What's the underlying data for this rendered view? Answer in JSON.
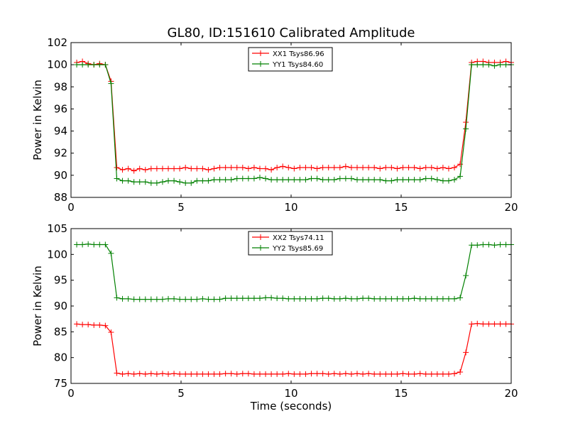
{
  "title": "GL80, ID:151610 Calibrated Amplitude",
  "colors": {
    "red": "#ff0000",
    "green": "#008000"
  },
  "chart_data": [
    {
      "type": "line",
      "title": "GL80, ID:151610 Calibrated Amplitude",
      "xlabel": "",
      "ylabel": "Power in Kelvin",
      "xlim": [
        0,
        20
      ],
      "ylim": [
        88,
        102
      ],
      "xticks": [
        "0",
        "5",
        "10",
        "15",
        "20"
      ],
      "yticks": [
        "88",
        "90",
        "92",
        "94",
        "96",
        "98",
        "100",
        "102"
      ],
      "legend_position": "top-center",
      "grid": false,
      "x": [
        0.26,
        0.52,
        0.78,
        1.04,
        1.3,
        1.56,
        1.82,
        2.08,
        2.34,
        2.6,
        2.86,
        3.12,
        3.38,
        3.64,
        3.9,
        4.16,
        4.42,
        4.68,
        4.94,
        5.2,
        5.46,
        5.72,
        5.98,
        6.24,
        6.5,
        6.76,
        7.02,
        7.28,
        7.54,
        7.8,
        8.06,
        8.32,
        8.58,
        8.84,
        9.1,
        9.36,
        9.62,
        9.88,
        10.14,
        10.4,
        10.66,
        10.92,
        11.18,
        11.44,
        11.7,
        11.96,
        12.22,
        12.48,
        12.74,
        13.0,
        13.26,
        13.52,
        13.78,
        14.04,
        14.3,
        14.56,
        14.82,
        15.08,
        15.34,
        15.6,
        15.86,
        16.12,
        16.38,
        16.64,
        16.9,
        17.16,
        17.42,
        17.68,
        17.94,
        18.2,
        18.46,
        18.72,
        18.98,
        19.24,
        19.5,
        19.76,
        20.0
      ],
      "series": [
        {
          "name": "XX1 Tsys86.96",
          "color": "#ff0000",
          "values": [
            100.2,
            100.3,
            100.1,
            100.0,
            100.1,
            100.0,
            98.5,
            90.7,
            90.5,
            90.6,
            90.4,
            90.6,
            90.5,
            90.6,
            90.6,
            90.6,
            90.6,
            90.6,
            90.6,
            90.7,
            90.6,
            90.6,
            90.6,
            90.5,
            90.6,
            90.7,
            90.7,
            90.7,
            90.7,
            90.7,
            90.6,
            90.7,
            90.6,
            90.6,
            90.5,
            90.7,
            90.8,
            90.7,
            90.6,
            90.7,
            90.7,
            90.7,
            90.6,
            90.7,
            90.7,
            90.7,
            90.7,
            90.8,
            90.7,
            90.7,
            90.7,
            90.7,
            90.7,
            90.6,
            90.7,
            90.7,
            90.6,
            90.7,
            90.7,
            90.7,
            90.6,
            90.7,
            90.7,
            90.6,
            90.7,
            90.6,
            90.7,
            91.0,
            94.8,
            100.2,
            100.3,
            100.3,
            100.2,
            100.2,
            100.2,
            100.3,
            100.2
          ]
        },
        {
          "name": "YY1 Tsys84.60",
          "color": "#008000",
          "values": [
            100.0,
            100.0,
            100.0,
            100.0,
            100.0,
            100.0,
            98.3,
            89.7,
            89.5,
            89.5,
            89.4,
            89.4,
            89.4,
            89.3,
            89.3,
            89.4,
            89.5,
            89.5,
            89.4,
            89.3,
            89.3,
            89.5,
            89.5,
            89.5,
            89.6,
            89.6,
            89.6,
            89.6,
            89.7,
            89.7,
            89.7,
            89.7,
            89.8,
            89.7,
            89.6,
            89.6,
            89.6,
            89.6,
            89.6,
            89.6,
            89.6,
            89.7,
            89.7,
            89.6,
            89.6,
            89.6,
            89.7,
            89.7,
            89.7,
            89.6,
            89.6,
            89.6,
            89.6,
            89.6,
            89.5,
            89.5,
            89.6,
            89.6,
            89.6,
            89.6,
            89.6,
            89.7,
            89.7,
            89.6,
            89.5,
            89.5,
            89.6,
            89.9,
            94.2,
            100.0,
            100.0,
            100.0,
            100.0,
            99.9,
            100.0,
            100.0,
            100.0
          ]
        }
      ]
    },
    {
      "type": "line",
      "title": "",
      "xlabel": "Time (seconds)",
      "ylabel": "Power in Kelvin",
      "xlim": [
        0,
        20
      ],
      "ylim": [
        75,
        105
      ],
      "xticks": [
        "0",
        "5",
        "10",
        "15",
        "20"
      ],
      "yticks": [
        "75",
        "80",
        "85",
        "90",
        "95",
        "100",
        "105"
      ],
      "legend_position": "top-center",
      "grid": false,
      "x": [
        0.26,
        0.52,
        0.78,
        1.04,
        1.3,
        1.56,
        1.82,
        2.08,
        2.34,
        2.6,
        2.86,
        3.12,
        3.38,
        3.64,
        3.9,
        4.16,
        4.42,
        4.68,
        4.94,
        5.2,
        5.46,
        5.72,
        5.98,
        6.24,
        6.5,
        6.76,
        7.02,
        7.28,
        7.54,
        7.8,
        8.06,
        8.32,
        8.58,
        8.84,
        9.1,
        9.36,
        9.62,
        9.88,
        10.14,
        10.4,
        10.66,
        10.92,
        11.18,
        11.44,
        11.7,
        11.96,
        12.22,
        12.48,
        12.74,
        13.0,
        13.26,
        13.52,
        13.78,
        14.04,
        14.3,
        14.56,
        14.82,
        15.08,
        15.34,
        15.6,
        15.86,
        16.12,
        16.38,
        16.64,
        16.9,
        17.16,
        17.42,
        17.68,
        17.94,
        18.2,
        18.46,
        18.72,
        18.98,
        19.24,
        19.5,
        19.76,
        20.0
      ],
      "series": [
        {
          "name": "XX2 Tsys74.11",
          "color": "#ff0000",
          "values": [
            86.5,
            86.4,
            86.4,
            86.3,
            86.3,
            86.2,
            84.9,
            77.0,
            76.8,
            76.9,
            76.8,
            76.9,
            76.8,
            76.9,
            76.8,
            76.9,
            76.8,
            76.9,
            76.8,
            76.8,
            76.8,
            76.8,
            76.8,
            76.8,
            76.8,
            76.8,
            76.9,
            76.9,
            76.8,
            76.9,
            76.9,
            76.8,
            76.8,
            76.8,
            76.8,
            76.8,
            76.8,
            76.9,
            76.8,
            76.8,
            76.8,
            76.9,
            76.9,
            76.9,
            76.8,
            76.9,
            76.8,
            76.9,
            76.8,
            76.9,
            76.8,
            76.9,
            76.8,
            76.8,
            76.8,
            76.8,
            76.8,
            76.9,
            76.8,
            76.8,
            76.9,
            76.8,
            76.8,
            76.8,
            76.8,
            76.8,
            76.9,
            77.2,
            81.0,
            86.5,
            86.6,
            86.5,
            86.5,
            86.5,
            86.5,
            86.5,
            86.5
          ]
        },
        {
          "name": "YY2 Tsys85.69",
          "color": "#008000",
          "values": [
            101.9,
            101.9,
            102.0,
            101.9,
            101.9,
            101.9,
            100.2,
            91.6,
            91.4,
            91.4,
            91.3,
            91.3,
            91.3,
            91.3,
            91.3,
            91.3,
            91.4,
            91.4,
            91.3,
            91.3,
            91.3,
            91.3,
            91.4,
            91.3,
            91.3,
            91.3,
            91.5,
            91.5,
            91.5,
            91.5,
            91.5,
            91.5,
            91.5,
            91.6,
            91.6,
            91.5,
            91.5,
            91.4,
            91.4,
            91.4,
            91.4,
            91.4,
            91.4,
            91.5,
            91.5,
            91.4,
            91.4,
            91.5,
            91.4,
            91.4,
            91.5,
            91.5,
            91.4,
            91.4,
            91.4,
            91.4,
            91.4,
            91.4,
            91.4,
            91.5,
            91.4,
            91.4,
            91.4,
            91.4,
            91.4,
            91.4,
            91.4,
            91.6,
            95.9,
            101.8,
            101.8,
            101.9,
            101.9,
            101.8,
            101.9,
            101.9,
            101.9
          ]
        }
      ]
    }
  ]
}
